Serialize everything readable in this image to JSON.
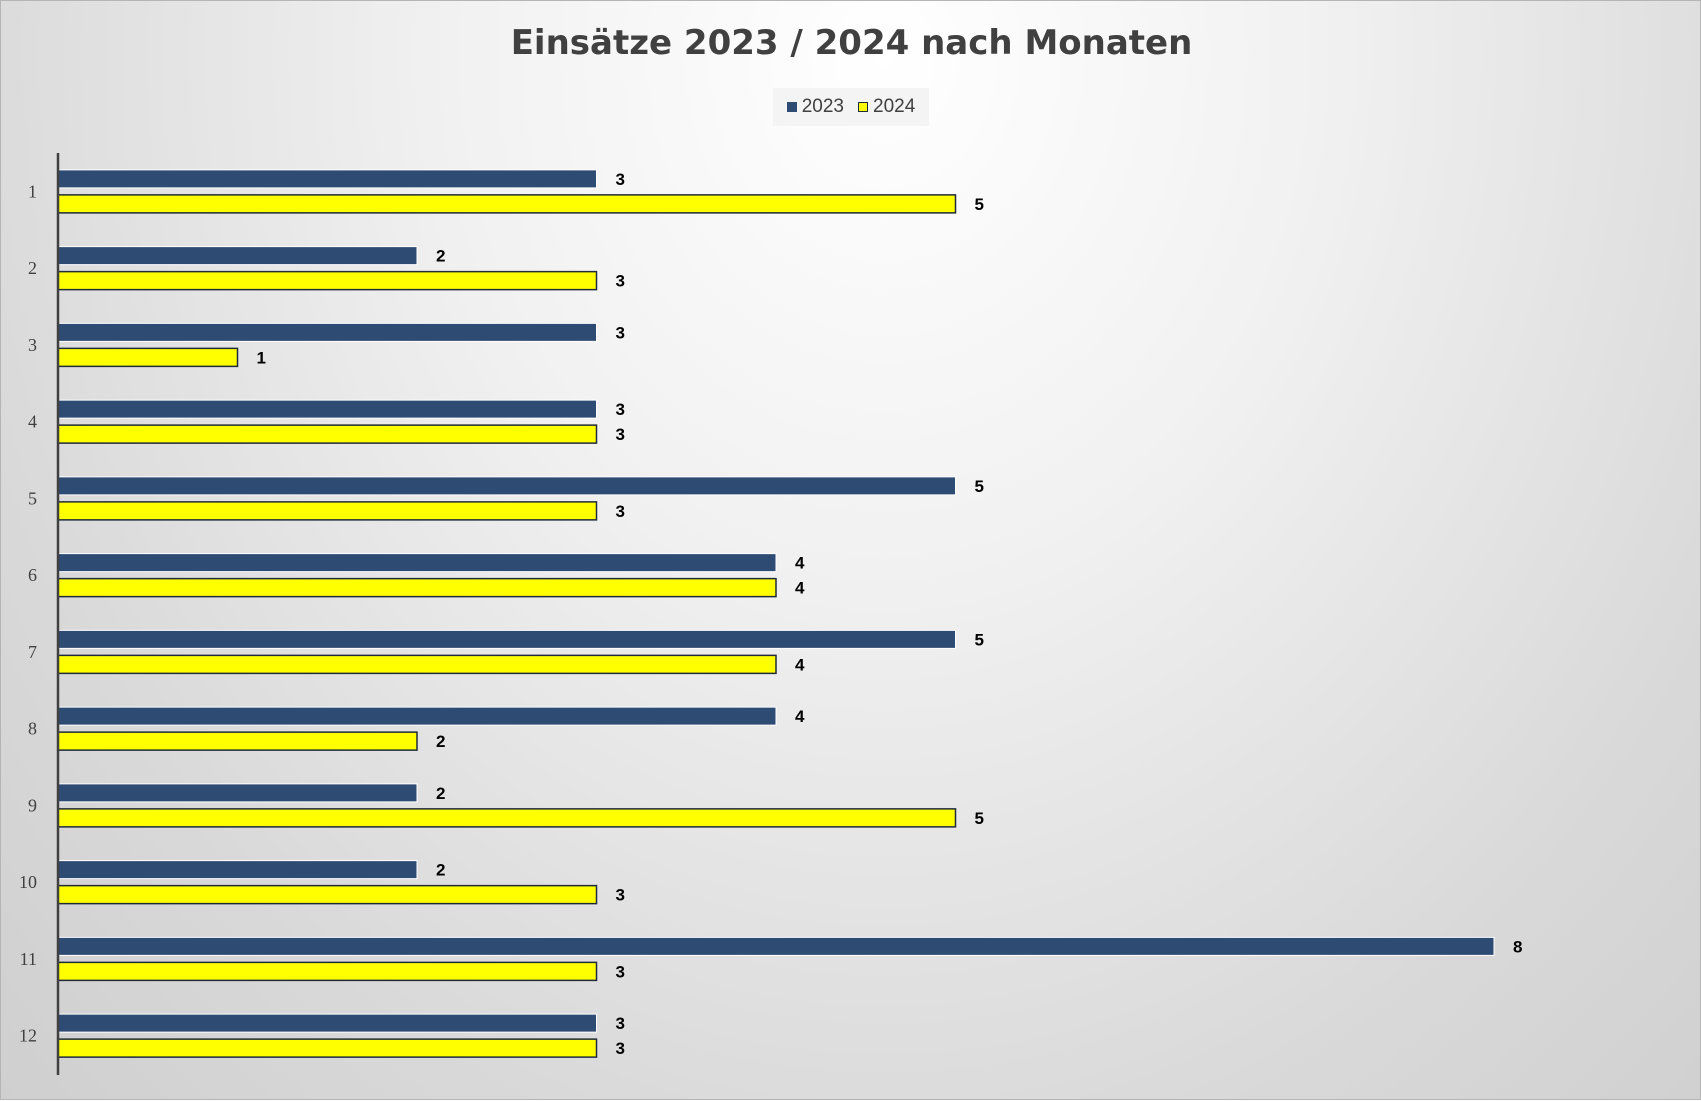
{
  "chart_data": {
    "type": "bar",
    "orientation": "horizontal",
    "title": "Einsätze 2023 / 2024 nach Monaten",
    "categories": [
      "1",
      "2",
      "3",
      "4",
      "5",
      "6",
      "7",
      "8",
      "9",
      "10",
      "11",
      "12"
    ],
    "series": [
      {
        "name": "2023",
        "color": "#2e4b74",
        "values": [
          3,
          2,
          3,
          3,
          5,
          4,
          5,
          4,
          2,
          2,
          8,
          3
        ]
      },
      {
        "name": "2024",
        "color": "#ffff00",
        "values": [
          5,
          3,
          1,
          3,
          3,
          4,
          4,
          2,
          5,
          3,
          3,
          3
        ]
      }
    ],
    "xlim": [
      0,
      9
    ],
    "data_labels": true,
    "legend_position": "top",
    "grid": false
  }
}
